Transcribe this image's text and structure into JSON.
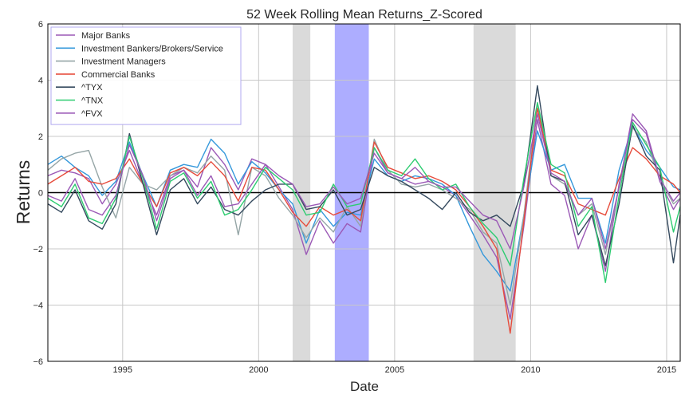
{
  "chart_data": {
    "type": "line",
    "title": "52 Week Rolling Mean Returns_Z-Scored",
    "xlabel": "Date",
    "ylabel": "Returns",
    "xlim": [
      1992.25,
      2015.5
    ],
    "ylim": [
      -6,
      6
    ],
    "x_ticks": [
      1995,
      2000,
      2005,
      2010,
      2015
    ],
    "y_ticks": [
      -6,
      -4,
      -2,
      0,
      2,
      4,
      6
    ],
    "grid": true,
    "legend_placement": "top-left",
    "zero_line": true,
    "shaded_regions": [
      {
        "start": 2001.25,
        "end": 2001.9,
        "color": "#bbbbbb"
      },
      {
        "start": 2002.8,
        "end": 2004.05,
        "color": "#7777ff"
      },
      {
        "start": 2007.9,
        "end": 2009.45,
        "color": "#bbbbbb"
      }
    ],
    "series": [
      {
        "name": "Major Banks",
        "color": "#9b59b6",
        "x": [
          1992.25,
          1992.75,
          1993.25,
          1993.75,
          1994.25,
          1994.75,
          1995.25,
          1995.75,
          1996.25,
          1996.75,
          1997.25,
          1997.75,
          1998.25,
          1998.75,
          1999.25,
          1999.75,
          2000.25,
          2000.75,
          2001.25,
          2001.75,
          2002.25,
          2002.75,
          2003.25,
          2003.75,
          2004.25,
          2004.75,
          2005.25,
          2005.75,
          2006.25,
          2006.75,
          2007.25,
          2007.75,
          2008.25,
          2008.75,
          2009.25,
          2009.75,
          2010.25,
          2010.75,
          2011.25,
          2011.75,
          2012.25,
          2012.75,
          2013.25,
          2013.75,
          2014.25,
          2014.75,
          2015.25,
          2015.5
        ],
        "y": [
          0.6,
          0.8,
          0.7,
          0.5,
          -0.4,
          0.3,
          1.5,
          0.3,
          -0.8,
          0.6,
          0.8,
          0.2,
          1.6,
          1.0,
          0.1,
          1.2,
          1.0,
          0.2,
          -0.6,
          -2.2,
          -1.0,
          -1.8,
          -1.1,
          -1.4,
          1.6,
          0.7,
          0.5,
          0.3,
          0.4,
          0.2,
          -0.1,
          -0.8,
          -1.5,
          -2.3,
          -4.5,
          -1.2,
          2.6,
          0.3,
          -0.1,
          -2.0,
          -0.8,
          -2.8,
          0.3,
          2.6,
          2.1,
          0.4,
          -0.6,
          -0.2
        ]
      },
      {
        "name": "Investment Bankers/Brokers/Service",
        "color": "#3498db",
        "x": [
          1992.25,
          1992.75,
          1993.25,
          1993.75,
          1994.25,
          1994.75,
          1995.25,
          1995.75,
          1996.25,
          1996.75,
          1997.25,
          1997.75,
          1998.25,
          1998.75,
          1999.25,
          1999.75,
          2000.25,
          2000.75,
          2001.25,
          2001.75,
          2002.25,
          2002.75,
          2003.25,
          2003.75,
          2004.25,
          2004.75,
          2005.25,
          2005.75,
          2006.25,
          2006.75,
          2007.25,
          2007.75,
          2008.25,
          2008.75,
          2009.25,
          2009.75,
          2010.25,
          2010.75,
          2011.25,
          2011.75,
          2012.25,
          2012.75,
          2013.25,
          2013.75,
          2014.25,
          2014.75,
          2015.25,
          2015.5
        ],
        "y": [
          1.0,
          1.3,
          0.9,
          0.6,
          -0.1,
          0.4,
          1.8,
          0.6,
          -0.5,
          0.8,
          1.0,
          0.9,
          1.9,
          1.4,
          0.3,
          1.1,
          0.7,
          0.1,
          -0.4,
          -1.8,
          -0.6,
          -1.2,
          -0.7,
          -0.8,
          1.2,
          0.6,
          0.4,
          0.6,
          0.5,
          0.3,
          -0.1,
          -1.2,
          -2.2,
          -2.8,
          -3.5,
          -0.8,
          2.2,
          0.8,
          1.0,
          -0.2,
          -0.2,
          -1.8,
          0.8,
          2.4,
          1.5,
          0.9,
          0.2,
          0.1
        ]
      },
      {
        "name": "Investment Managers",
        "color": "#95a5a6",
        "x": [
          1992.25,
          1992.75,
          1993.25,
          1993.75,
          1994.25,
          1994.75,
          1995.25,
          1995.75,
          1996.25,
          1996.75,
          1997.25,
          1997.75,
          1998.25,
          1998.75,
          1999.25,
          1999.75,
          2000.25,
          2000.75,
          2001.25,
          2001.75,
          2002.25,
          2002.75,
          2003.25,
          2003.75,
          2004.25,
          2004.75,
          2005.25,
          2005.75,
          2006.25,
          2006.75,
          2007.25,
          2007.75,
          2008.25,
          2008.75,
          2009.25,
          2009.75,
          2010.25,
          2010.75,
          2011.25,
          2011.75,
          2012.25,
          2012.75,
          2013.25,
          2013.75,
          2014.25,
          2014.75,
          2015.25,
          2015.5
        ],
        "y": [
          0.8,
          1.2,
          1.4,
          1.5,
          0.2,
          -0.9,
          0.9,
          0.3,
          0.1,
          0.6,
          0.9,
          0.7,
          1.3,
          0.8,
          -1.5,
          0.9,
          0.6,
          -0.2,
          -0.8,
          -1.6,
          -0.9,
          -1.4,
          -0.5,
          -1.2,
          1.9,
          0.8,
          0.3,
          0.2,
          0.3,
          0.1,
          -0.2,
          -0.6,
          -1.4,
          -1.8,
          -4.0,
          -0.8,
          3.2,
          0.6,
          0.3,
          -0.8,
          -0.4,
          -2.2,
          0.2,
          2.3,
          1.8,
          0.5,
          -0.4,
          -0.2
        ]
      },
      {
        "name": "Commercial Banks",
        "color": "#e74c3c",
        "x": [
          1992.25,
          1992.75,
          1993.25,
          1993.75,
          1994.25,
          1994.75,
          1995.25,
          1995.75,
          1996.25,
          1996.75,
          1997.25,
          1997.75,
          1998.25,
          1998.75,
          1999.25,
          1999.75,
          2000.25,
          2000.75,
          2001.25,
          2001.75,
          2002.25,
          2002.75,
          2003.25,
          2003.75,
          2004.25,
          2004.75,
          2005.25,
          2005.75,
          2006.25,
          2006.75,
          2007.25,
          2007.75,
          2008.25,
          2008.75,
          2009.25,
          2009.75,
          2010.25,
          2010.75,
          2011.25,
          2011.75,
          2012.25,
          2012.75,
          2013.25,
          2013.75,
          2014.25,
          2014.75,
          2015.25,
          2015.5
        ],
        "y": [
          0.3,
          0.6,
          0.9,
          0.4,
          0.3,
          0.5,
          1.2,
          0.3,
          -0.5,
          0.7,
          0.9,
          0.6,
          1.1,
          0.6,
          -0.3,
          0.9,
          0.8,
          0.1,
          -0.7,
          -1.2,
          -0.5,
          -0.8,
          -0.6,
          -1.0,
          1.8,
          0.9,
          0.7,
          0.5,
          0.6,
          0.4,
          0.1,
          -0.5,
          -1.2,
          -2.0,
          -5.0,
          -1.0,
          3.0,
          0.8,
          0.6,
          -0.4,
          -0.6,
          -0.8,
          0.5,
          1.6,
          1.2,
          0.6,
          0.3,
          0.0
        ]
      },
      {
        "name": "^TYX",
        "color": "#34495e",
        "x": [
          1992.25,
          1992.75,
          1993.25,
          1993.75,
          1994.25,
          1994.75,
          1995.25,
          1995.75,
          1996.25,
          1996.75,
          1997.25,
          1997.75,
          1998.25,
          1998.75,
          1999.25,
          1999.75,
          2000.25,
          2000.75,
          2001.25,
          2001.75,
          2002.25,
          2002.75,
          2003.25,
          2003.75,
          2004.25,
          2004.75,
          2005.25,
          2005.75,
          2006.25,
          2006.75,
          2007.25,
          2007.75,
          2008.25,
          2008.75,
          2009.25,
          2009.75,
          2010.25,
          2010.75,
          2011.25,
          2011.75,
          2012.25,
          2012.75,
          2013.25,
          2013.75,
          2014.25,
          2014.75,
          2015.25,
          2015.5
        ],
        "y": [
          -0.4,
          -0.7,
          0.1,
          -1.0,
          -1.3,
          -0.4,
          2.1,
          0.3,
          -1.5,
          0.1,
          0.5,
          -0.4,
          0.2,
          -0.6,
          -0.8,
          -0.3,
          0.1,
          0.3,
          0.3,
          -0.6,
          -0.5,
          0.1,
          -0.8,
          -0.6,
          0.9,
          0.6,
          0.4,
          0.1,
          -0.2,
          -0.6,
          0.0,
          -0.7,
          -1.0,
          -0.8,
          -1.2,
          0.3,
          3.8,
          0.6,
          0.4,
          -1.5,
          -0.8,
          -2.6,
          -0.4,
          2.4,
          1.3,
          0.8,
          -2.5,
          -0.8
        ]
      },
      {
        "name": "^TNX",
        "color": "#2ecc71",
        "x": [
          1992.25,
          1992.75,
          1993.25,
          1993.75,
          1994.25,
          1994.75,
          1995.25,
          1995.75,
          1996.25,
          1996.75,
          1997.25,
          1997.75,
          1998.25,
          1998.75,
          1999.25,
          1999.75,
          2000.25,
          2000.75,
          2001.25,
          2001.75,
          2002.25,
          2002.75,
          2003.25,
          2003.75,
          2004.25,
          2004.75,
          2005.25,
          2005.75,
          2006.25,
          2006.75,
          2007.25,
          2007.75,
          2008.25,
          2008.75,
          2009.25,
          2009.75,
          2010.25,
          2010.75,
          2011.25,
          2011.75,
          2012.25,
          2012.75,
          2013.25,
          2013.75,
          2014.25,
          2014.75,
          2015.25,
          2015.5
        ],
        "y": [
          -0.2,
          -0.5,
          0.3,
          -0.9,
          -1.1,
          -0.2,
          2.0,
          0.5,
          -1.3,
          0.4,
          0.7,
          -0.2,
          0.4,
          -0.8,
          -0.6,
          0.1,
          0.9,
          0.5,
          0.1,
          -0.8,
          -0.7,
          0.3,
          -0.5,
          -0.4,
          1.6,
          0.8,
          0.6,
          1.2,
          0.5,
          0.1,
          0.3,
          -0.5,
          -1.1,
          -1.6,
          -2.6,
          0.5,
          3.2,
          1.0,
          0.7,
          -1.2,
          -0.5,
          -3.2,
          -0.1,
          2.5,
          1.7,
          0.9,
          -1.4,
          -0.5
        ]
      },
      {
        "name": "^FVX",
        "color": "#9b59b6",
        "x": [
          1992.25,
          1992.75,
          1993.25,
          1993.75,
          1994.25,
          1994.75,
          1995.25,
          1995.75,
          1996.25,
          1996.75,
          1997.25,
          1997.75,
          1998.25,
          1998.75,
          1999.25,
          1999.75,
          2000.25,
          2000.75,
          2001.25,
          2001.75,
          2002.25,
          2002.75,
          2003.25,
          2003.75,
          2004.25,
          2004.75,
          2005.25,
          2005.75,
          2006.25,
          2006.75,
          2007.25,
          2007.75,
          2008.25,
          2008.75,
          2009.25,
          2009.75,
          2010.25,
          2010.75,
          2011.25,
          2011.75,
          2012.25,
          2012.75,
          2013.25,
          2013.75,
          2014.25,
          2014.75,
          2015.25,
          2015.5
        ],
        "y": [
          -0.1,
          -0.3,
          0.5,
          -0.6,
          -0.8,
          -0.1,
          1.7,
          0.6,
          -1.0,
          0.5,
          0.8,
          -0.1,
          0.6,
          -0.5,
          -0.4,
          0.3,
          1.0,
          0.6,
          0.3,
          -0.5,
          -0.4,
          0.2,
          -0.4,
          -0.2,
          1.4,
          0.7,
          0.5,
          0.9,
          0.4,
          0.2,
          0.2,
          -0.3,
          -0.8,
          -1.0,
          -2.0,
          0.2,
          2.8,
          0.7,
          0.4,
          -0.8,
          -0.2,
          -2.0,
          0.2,
          2.8,
          2.2,
          0.5,
          -0.3,
          0.0
        ]
      }
    ]
  }
}
